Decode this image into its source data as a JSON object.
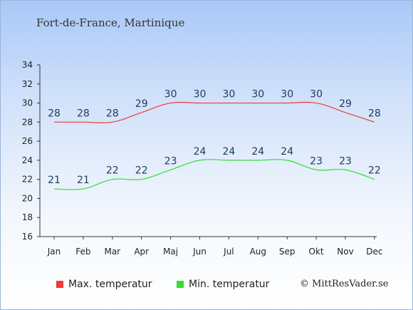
{
  "header": {
    "place": "Fort-de-France, Martinique"
  },
  "legend": {
    "max_label": "Max. temperatur",
    "min_label": "Min. temperatur"
  },
  "credit": "© MittResVader.se",
  "colors": {
    "max": "#ee3a3a",
    "min": "#33dd33"
  },
  "chart_data": {
    "type": "line",
    "categories": [
      "Jan",
      "Feb",
      "Mar",
      "Apr",
      "Maj",
      "Jun",
      "Jul",
      "Aug",
      "Sep",
      "Okt",
      "Nov",
      "Dec"
    ],
    "series": [
      {
        "name": "Max. temperatur",
        "values": [
          28,
          28,
          28,
          29,
          30,
          30,
          30,
          30,
          30,
          30,
          29,
          28
        ]
      },
      {
        "name": "Min. temperatur",
        "values": [
          21,
          21,
          22,
          22,
          23,
          24,
          24,
          24,
          24,
          23,
          23,
          22
        ]
      }
    ],
    "ylim": [
      16,
      34
    ],
    "yticks": [
      16,
      18,
      20,
      22,
      24,
      26,
      28,
      30,
      32,
      34
    ],
    "grid": false,
    "legend_position": "bottom-left"
  }
}
